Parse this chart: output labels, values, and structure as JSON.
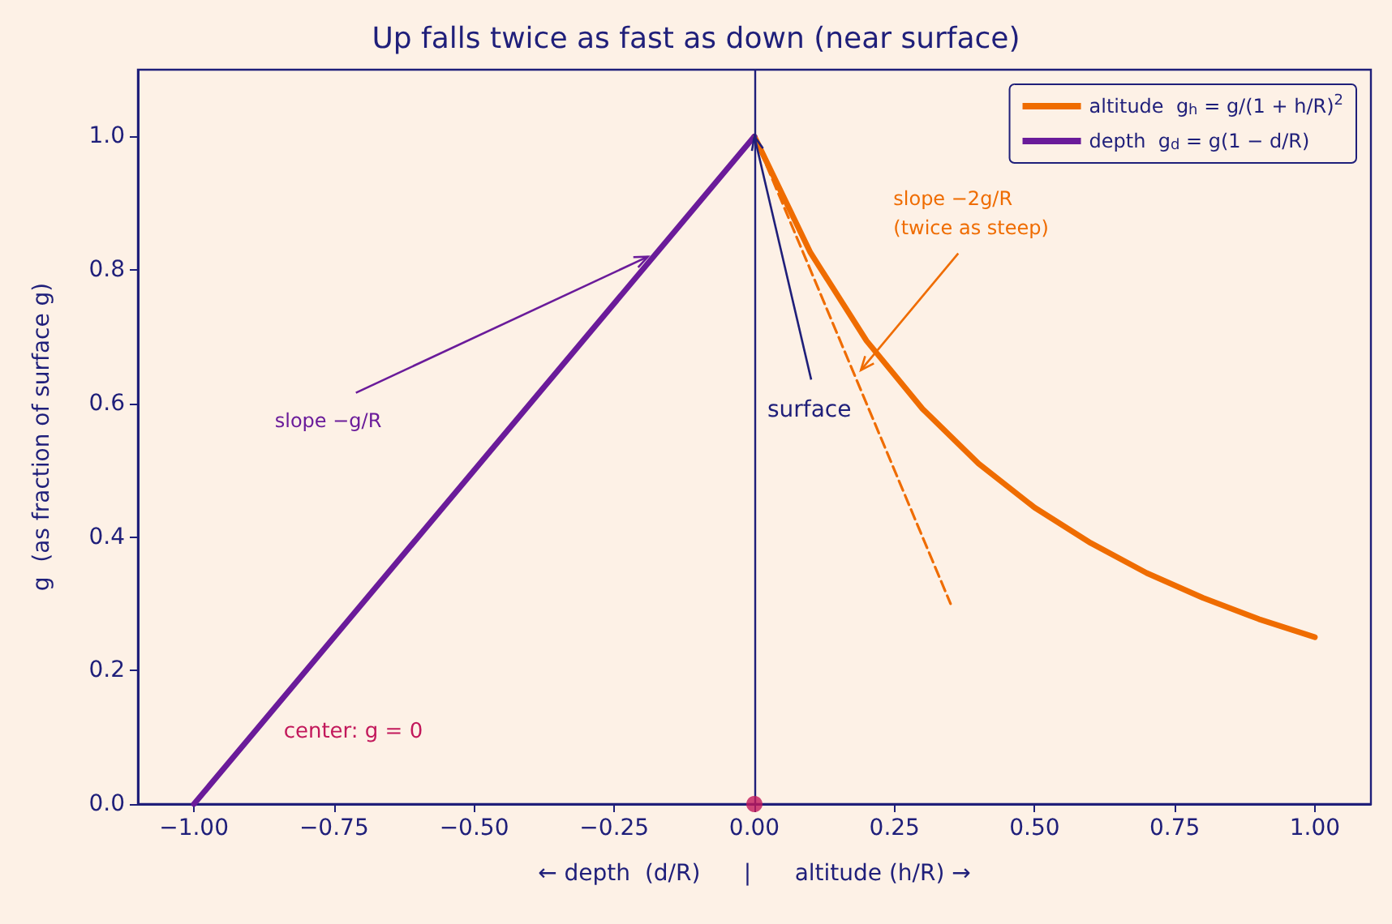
{
  "chart_data": {
    "type": "line",
    "title": "Up falls twice as fast as down (near surface)",
    "xlabel": "← depth  (d/R)      |      altitude (h/R) →",
    "ylabel": "g  (as fraction of surface g)",
    "series": [
      {
        "name": "altitude  g$_{h}$ = g/(1 + h/R)$^{2}$",
        "color": "#ef6c00",
        "x": [
          0,
          0.1,
          0.2,
          0.3,
          0.4,
          0.5,
          0.6,
          0.7,
          0.8,
          0.9,
          1.0
        ],
        "values": [
          1,
          0.826,
          0.694,
          0.592,
          0.51,
          0.444,
          0.391,
          0.346,
          0.309,
          0.277,
          0.25
        ]
      },
      {
        "name": "depth  g$_{d}$ = g(1 − d/R)",
        "color": "#6a1b9a",
        "x": [
          -1,
          0
        ],
        "values": [
          0,
          1
        ]
      },
      {
        "color": "#ef6c00",
        "x": [
          0,
          0.35
        ],
        "values": [
          1,
          0.3
        ],
        "line_style": "dashed"
      },
      {
        "type": "scatter",
        "color": "#c2185b",
        "x": [
          0
        ],
        "values": [
          0
        ],
        "marker": "circle"
      }
    ],
    "xlim": [
      -1.1,
      1.1
    ],
    "xticks": [
      {
        "value": -1,
        "label": "−1.00"
      },
      {
        "value": -0.75,
        "label": "−0.75"
      },
      {
        "value": -0.5,
        "label": "−0.50"
      },
      {
        "value": -0.25,
        "label": "−0.25"
      },
      {
        "value": 0,
        "label": "0.00"
      },
      {
        "value": 0.25,
        "label": "0.25"
      },
      {
        "value": 0.5,
        "label": "0.50"
      },
      {
        "value": 0.75,
        "label": "0.75"
      },
      {
        "value": 1,
        "label": "1.00"
      }
    ],
    "ylim": [
      0,
      1.1
    ],
    "yticks": [
      {
        "value": 0,
        "label": "0.0"
      },
      {
        "value": 0.2,
        "label": "0.2"
      },
      {
        "value": 0.4,
        "label": "0.4"
      },
      {
        "value": 0.6,
        "label": "0.6"
      },
      {
        "value": 0.8,
        "label": "0.8"
      },
      {
        "value": 1,
        "label": "1.0"
      }
    ],
    "ref_lines": [
      {
        "axis": "x",
        "value": 0,
        "color": "#1f1f7a"
      }
    ],
    "annotations": [
      {
        "text": "slope −g/R",
        "x": -0.19,
        "y": 0.82
      },
      {
        "text": "slope −2g/R\n(twice as steep)",
        "x": 0.19,
        "y": 0.65
      },
      {
        "text": "surface",
        "x": 0,
        "y": 1
      },
      "center: g = 0"
    ],
    "legend": "top right",
    "grid": false,
    "marker": "none",
    "line_style": "solid"
  }
}
